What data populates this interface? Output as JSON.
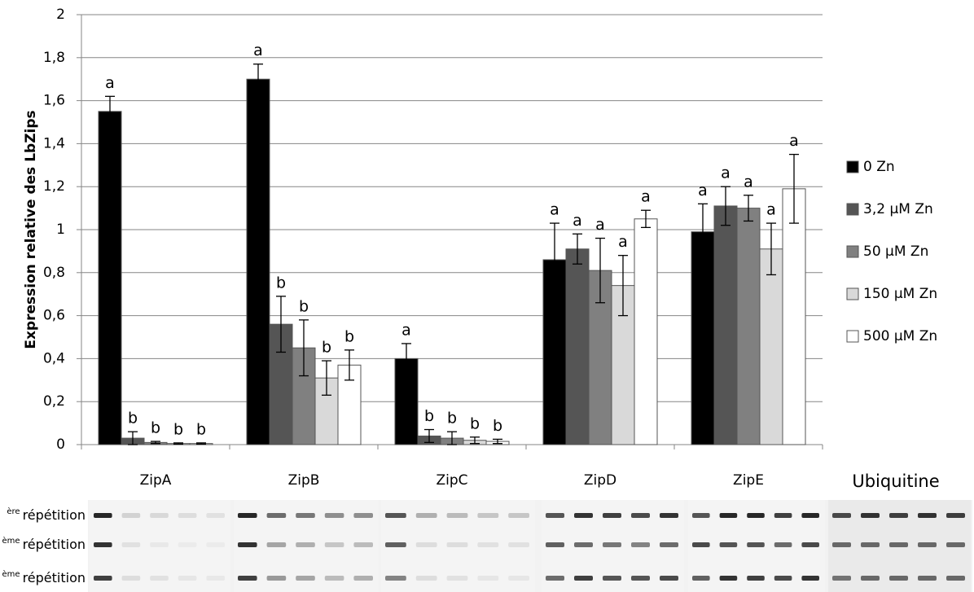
{
  "chart_data": {
    "type": "bar",
    "y_label": "Expression relative des LbZips",
    "categories": [
      "ZipA",
      "ZipB",
      "ZipC",
      "ZipD",
      "ZipE"
    ],
    "ylim": [
      0,
      2
    ],
    "yticks": [
      0,
      {
        "value": 0.2,
        "label": "0,2"
      },
      {
        "value": 0.4,
        "label": "0,4"
      },
      {
        "value": 0.6,
        "label": "0,6"
      },
      {
        "value": 0.8,
        "label": "0,8"
      },
      1,
      {
        "value": 1.2,
        "label": "1,2"
      },
      {
        "value": 1.4,
        "label": "1,4"
      },
      {
        "value": 1.6,
        "label": "1,6"
      },
      {
        "value": 1.8,
        "label": "1,8"
      },
      2
    ],
    "grid": true,
    "legend": "right",
    "series": [
      {
        "name": "0 Zn",
        "color": "#000000",
        "values": [
          1.55,
          1.7,
          0.4,
          0.86,
          0.99
        ],
        "errors": [
          0.07,
          0.07,
          0.07,
          0.17,
          0.13
        ],
        "letters": [
          "a",
          "a",
          "a",
          "a",
          "a"
        ]
      },
      {
        "name": "3,2 µM Zn",
        "color": "#555555",
        "values": [
          0.03,
          0.56,
          0.04,
          0.91,
          1.11
        ],
        "errors": [
          0.03,
          0.13,
          0.03,
          0.07,
          0.09
        ],
        "letters": [
          "b",
          "b",
          "b",
          "a",
          "a"
        ]
      },
      {
        "name": "50 µM Zn",
        "color": "#808080",
        "values": [
          0.01,
          0.45,
          0.03,
          0.81,
          1.1
        ],
        "errors": [
          0.005,
          0.13,
          0.03,
          0.15,
          0.06
        ],
        "letters": [
          "b",
          "b",
          "b",
          "a",
          "a"
        ]
      },
      {
        "name": "150 µM Zn",
        "color": "#d9d9d9",
        "values": [
          0.005,
          0.31,
          0.02,
          0.74,
          0.91
        ],
        "errors": [
          0.003,
          0.08,
          0.015,
          0.14,
          0.12
        ],
        "letters": [
          "b",
          "b",
          "b",
          "a",
          "a"
        ]
      },
      {
        "name": "500 µM Zn",
        "color": "#ffffff",
        "values": [
          0.005,
          0.37,
          0.015,
          1.05,
          1.19
        ],
        "errors": [
          0.003,
          0.07,
          0.01,
          0.04,
          0.16
        ],
        "letters": [
          "b",
          "b",
          "b",
          "a",
          "a"
        ]
      }
    ]
  },
  "gel": {
    "label": "Ubiquitine",
    "rows": [
      {
        "sup": "ère",
        "label": "répétition"
      },
      {
        "sup": "ème",
        "label": "répétition"
      },
      {
        "sup": "ème",
        "label": "répétition"
      }
    ]
  }
}
